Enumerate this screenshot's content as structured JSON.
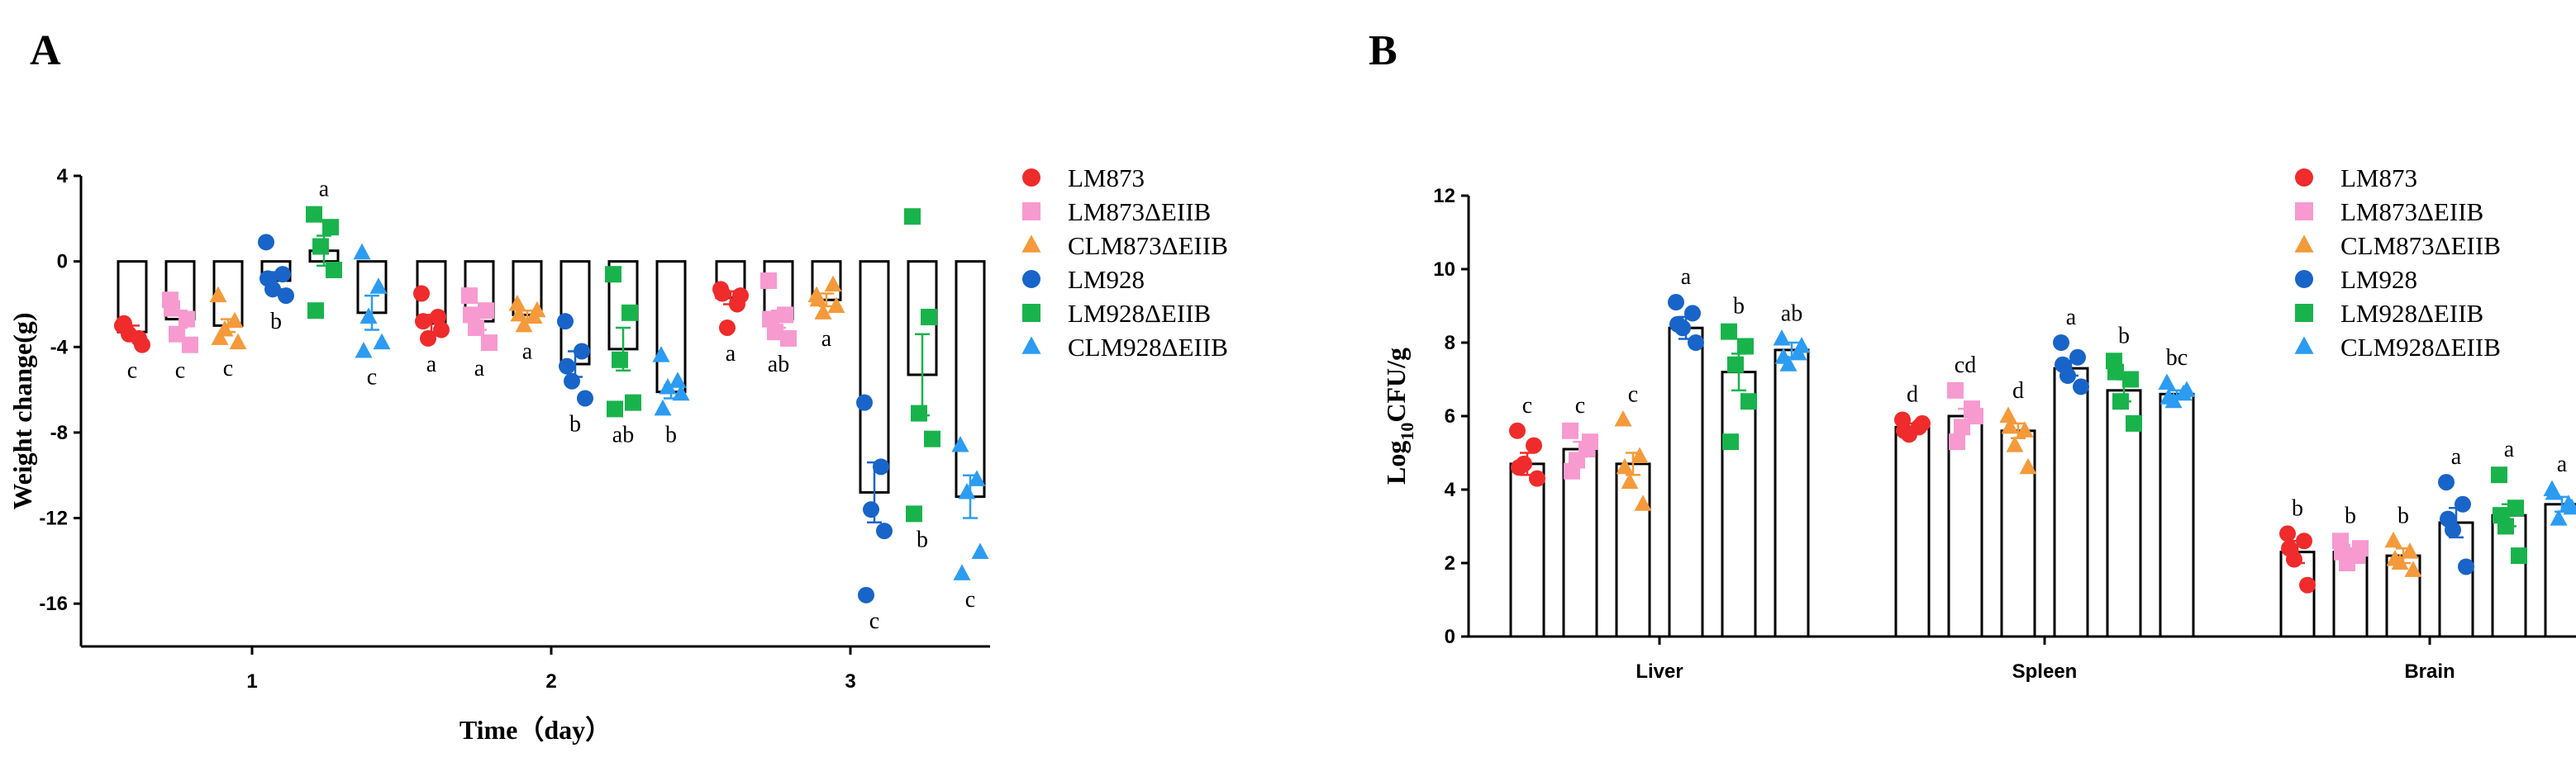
{
  "panels": {
    "a": "A",
    "b": "B"
  },
  "legend": [
    {
      "name": "LM873",
      "color": "#ef2b2b",
      "marker": "circle"
    },
    {
      "name": "LM873ΔEIIB",
      "color": "#f79ad0",
      "marker": "square"
    },
    {
      "name": "CLM873ΔEIIB",
      "color": "#f49a3a",
      "marker": "triangle"
    },
    {
      "name": "LM928",
      "color": "#1864c8",
      "marker": "circle"
    },
    {
      "name": "LM928ΔEIIB",
      "color": "#19b34c",
      "marker": "square"
    },
    {
      "name": "CLM928ΔEIIB",
      "color": "#2b9cf2",
      "marker": "triangle"
    }
  ],
  "chart_data": [
    {
      "type": "bar",
      "panel": "A",
      "xlabel": "Time（day）",
      "ylabel": "Weight change(g)",
      "categories": [
        "1",
        "2",
        "3"
      ],
      "ylim": [
        -18,
        4
      ],
      "yticks": [
        4,
        0,
        -4,
        -8,
        -12,
        -16
      ],
      "series": [
        {
          "name": "LM873",
          "values": [
            -3.3,
            -2.9,
            -1.7
          ],
          "err": [
            0.3,
            0.4,
            0.3
          ],
          "letters": [
            "c",
            "a",
            "a"
          ],
          "points": [
            [
              -3.0,
              -3.6,
              -3.4,
              -3.9,
              -2.9
            ],
            [
              -1.5,
              -2.6,
              -3.6,
              -3.2,
              -2.8
            ],
            [
              -1.3,
              -2.0,
              -3.1,
              -1.6,
              -1.5
            ]
          ]
        },
        {
          "name": "LM873ΔEIIB",
          "values": [
            -2.7,
            -2.8,
            -2.7
          ],
          "err": [
            0.4,
            0.4,
            0.4
          ],
          "letters": [
            "c",
            "a",
            "ab"
          ],
          "points": [
            [
              -1.8,
              -2.7,
              -3.4,
              -3.9,
              -2.2
            ],
            [
              -1.6,
              -2.3,
              -3.1,
              -3.8,
              -2.5
            ],
            [
              -0.9,
              -2.5,
              -3.3,
              -3.6,
              -2.7
            ]
          ]
        },
        {
          "name": "CLM873ΔEIIB",
          "values": [
            -3.0,
            -2.5,
            -1.8
          ],
          "err": [
            0.3,
            0.2,
            0.3
          ],
          "letters": [
            "c",
            "a",
            "a"
          ],
          "points": [
            [
              -1.6,
              -2.8,
              -3.2,
              -3.8,
              -3.6
            ],
            [
              -2.0,
              -2.6,
              -3.0,
              -2.3,
              -2.5
            ],
            [
              -1.6,
              -1.1,
              -2.4,
              -2.1,
              -1.8
            ]
          ]
        },
        {
          "name": "LM928",
          "values": [
            -0.9,
            -4.8,
            -10.8
          ],
          "err": [
            0.4,
            0.6,
            1.4
          ],
          "letters": [
            "b",
            "b",
            "c"
          ],
          "points": [
            [
              0.9,
              -0.6,
              -1.3,
              -1.6,
              -0.8
            ],
            [
              -2.8,
              -4.2,
              -5.6,
              -6.4,
              -4.9
            ],
            [
              -6.6,
              -9.6,
              -11.6,
              -12.6,
              -15.6
            ]
          ]
        },
        {
          "name": "LM928ΔEIIB",
          "values": [
            0.5,
            -4.1,
            -5.3
          ],
          "err": [
            0.7,
            1.0,
            1.9
          ],
          "letters": [
            "a",
            "ab",
            "b"
          ],
          "points": [
            [
              2.2,
              1.6,
              0.7,
              -0.4,
              -2.3
            ],
            [
              -0.6,
              -2.4,
              -4.6,
              -6.6,
              -6.9
            ],
            [
              2.1,
              -2.6,
              -7.1,
              -8.3,
              -11.8
            ]
          ]
        },
        {
          "name": "CLM928ΔEIIB",
          "values": [
            -2.4,
            -6.1,
            -11.0
          ],
          "err": [
            0.8,
            0.3,
            1.0
          ],
          "letters": [
            "c",
            "b",
            "c"
          ],
          "points": [
            [
              0.4,
              -1.2,
              -2.6,
              -3.8,
              -4.2
            ],
            [
              -4.4,
              -5.6,
              -5.9,
              -6.2,
              -6.9
            ],
            [
              -8.6,
              -10.2,
              -10.8,
              -13.6,
              -14.6
            ]
          ]
        }
      ]
    },
    {
      "type": "bar",
      "panel": "B",
      "xlabel": "",
      "ylabel": "Log10CFU/g",
      "ylabel_base": "Log",
      "ylabel_sub": "10",
      "ylabel_rest": "CFU/g",
      "categories": [
        "Liver",
        "Spleen",
        "Brain"
      ],
      "ylim": [
        0,
        12
      ],
      "yticks": [
        0,
        2,
        4,
        6,
        8,
        10,
        12
      ],
      "series": [
        {
          "name": "LM873",
          "values": [
            4.7,
            5.7,
            2.3
          ],
          "err": [
            0.3,
            0.1,
            0.3
          ],
          "letters": [
            "c",
            "d",
            "b"
          ],
          "points": [
            [
              5.6,
              5.2,
              4.7,
              4.3,
              4.6
            ],
            [
              5.9,
              5.7,
              5.5,
              5.8,
              5.6
            ],
            [
              2.8,
              2.6,
              2.1,
              1.4,
              2.4
            ]
          ]
        },
        {
          "name": "LM873ΔEIIB",
          "values": [
            5.1,
            6.0,
            2.3
          ],
          "err": [
            0.2,
            0.2,
            0.1
          ],
          "letters": [
            "c",
            "cd",
            "b"
          ],
          "points": [
            [
              5.6,
              5.1,
              4.8,
              5.3,
              4.5
            ],
            [
              6.7,
              6.2,
              5.7,
              6.0,
              5.3
            ],
            [
              2.6,
              2.2,
              2.0,
              2.4,
              2.3
            ]
          ]
        },
        {
          "name": "CLM873ΔEIIB",
          "values": [
            4.7,
            5.6,
            2.2
          ],
          "err": [
            0.3,
            0.2,
            0.2
          ],
          "letters": [
            "c",
            "d",
            "b"
          ],
          "points": [
            [
              5.9,
              4.9,
              4.2,
              3.6,
              4.6
            ],
            [
              6.0,
              5.6,
              5.2,
              4.6,
              5.7
            ],
            [
              2.6,
              2.3,
              2.0,
              1.8,
              2.1
            ]
          ]
        },
        {
          "name": "LM928",
          "values": [
            8.4,
            7.3,
            3.1
          ],
          "err": [
            0.3,
            0.2,
            0.4
          ],
          "letters": [
            "a",
            "a",
            "a"
          ],
          "points": [
            [
              9.1,
              8.8,
              8.4,
              8.0,
              8.5
            ],
            [
              8.0,
              7.6,
              7.1,
              6.8,
              7.4
            ],
            [
              4.2,
              3.6,
              2.9,
              1.9,
              3.2
            ]
          ]
        },
        {
          "name": "LM928ΔEIIB",
          "values": [
            7.2,
            6.7,
            3.3
          ],
          "err": [
            0.5,
            0.3,
            0.3
          ],
          "letters": [
            "b",
            "b",
            "a"
          ],
          "points": [
            [
              8.3,
              7.9,
              7.4,
              6.4,
              5.3
            ],
            [
              7.5,
              7.0,
              6.4,
              5.8,
              7.2
            ],
            [
              4.4,
              3.5,
              3.0,
              2.2,
              3.3
            ]
          ]
        },
        {
          "name": "CLM928ΔEIIB",
          "values": [
            7.8,
            6.6,
            3.6
          ],
          "err": [
            0.2,
            0.1,
            0.2
          ],
          "letters": [
            "ab",
            "bc",
            "a"
          ],
          "points": [
            [
              8.1,
              7.7,
              7.4,
              7.9,
              7.6
            ],
            [
              6.9,
              6.6,
              6.4,
              6.7,
              6.5
            ],
            [
              4.0,
              3.6,
              3.2,
              3.5,
              3.9
            ]
          ]
        }
      ]
    }
  ]
}
